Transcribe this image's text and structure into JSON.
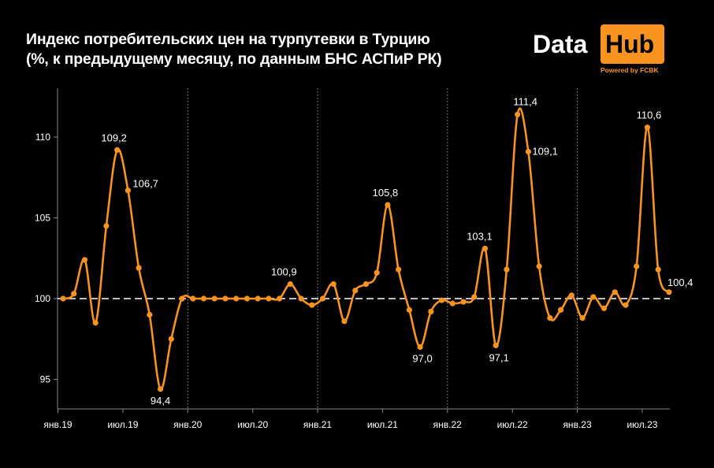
{
  "title_line1": "Индекс потребительских цен на турпутевки в Турцию",
  "title_line2": "(%, к предыдущему месяцу, по данным БНС АСПиР РК)",
  "logo": {
    "word1": "Data",
    "word2": "Hub",
    "powered": "Powered by FCBK"
  },
  "colors": {
    "line": "#f7931e",
    "background": "#000000",
    "reference": "#bfbfbf"
  },
  "chart_data": {
    "type": "line",
    "ylim": [
      92,
      113
    ],
    "yticks": [
      95,
      100,
      105,
      110
    ],
    "ytick_labels": [
      "95",
      "100",
      "105",
      "110"
    ],
    "xtick_labels": [
      "янв.19",
      "июл.19",
      "янв.20",
      "июл.20",
      "янв.21",
      "июл.21",
      "янв.22",
      "июл.22",
      "янв.23",
      "июл.23"
    ],
    "reference_line": 100,
    "grid": "vertical dotted lines at each January",
    "x": [
      "2019-01",
      "2019-02",
      "2019-03",
      "2019-04",
      "2019-05",
      "2019-06",
      "2019-07",
      "2019-08",
      "2019-09",
      "2019-10",
      "2019-11",
      "2019-12",
      "2020-01",
      "2020-02",
      "2020-03",
      "2020-04",
      "2020-05",
      "2020-06",
      "2020-07",
      "2020-08",
      "2020-09",
      "2020-10",
      "2020-11",
      "2020-12",
      "2021-01",
      "2021-02",
      "2021-03",
      "2021-04",
      "2021-05",
      "2021-06",
      "2021-07",
      "2021-08",
      "2021-09",
      "2021-10",
      "2021-11",
      "2021-12",
      "2022-01",
      "2022-02",
      "2022-03",
      "2022-04",
      "2022-05",
      "2022-06",
      "2022-07",
      "2022-08",
      "2022-09",
      "2022-10",
      "2022-11",
      "2022-12",
      "2023-01",
      "2023-02",
      "2023-03",
      "2023-04",
      "2023-05",
      "2023-06",
      "2023-07",
      "2023-08",
      "2023-09"
    ],
    "series": [
      {
        "values": [
          100.0,
          100.3,
          102.4,
          98.5,
          104.5,
          109.2,
          106.7,
          101.9,
          99.0,
          94.4,
          97.5,
          100.0,
          100.0,
          100.0,
          100.0,
          100.0,
          100.0,
          100.0,
          100.0,
          100.0,
          100.0,
          100.9,
          100.0,
          99.6,
          100.0,
          100.9,
          98.6,
          100.5,
          100.9,
          101.6,
          105.8,
          101.8,
          99.3,
          97.0,
          99.2,
          99.9,
          99.7,
          99.8,
          100.1,
          103.1,
          97.1,
          101.8,
          111.4,
          109.1,
          102.0,
          98.8,
          99.3,
          100.2,
          98.8,
          100.1,
          99.4,
          100.4,
          99.6,
          102.0,
          110.6,
          101.8,
          100.4
        ],
        "data_labels": [
          {
            "index": 5,
            "text": "109,2"
          },
          {
            "index": 6,
            "text": "106,7"
          },
          {
            "index": 9,
            "text": "94,4"
          },
          {
            "index": 21,
            "text": "100,9"
          },
          {
            "index": 30,
            "text": "105,8"
          },
          {
            "index": 33,
            "text": "97,0"
          },
          {
            "index": 39,
            "text": "103,1"
          },
          {
            "index": 40,
            "text": "97,1"
          },
          {
            "index": 42,
            "text": "111,4"
          },
          {
            "index": 43,
            "text": "109,1"
          },
          {
            "index": 54,
            "text": "110,6"
          },
          {
            "index": 56,
            "text": "100,4"
          }
        ]
      }
    ]
  }
}
